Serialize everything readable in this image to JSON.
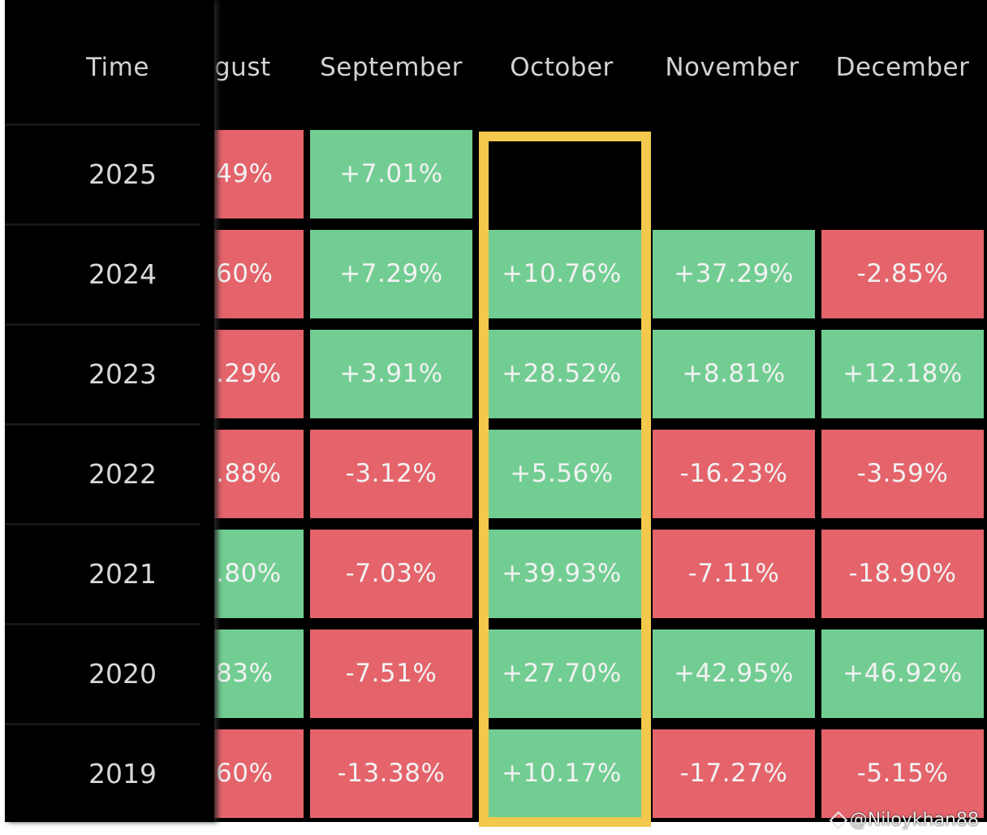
{
  "header": {
    "time": "Time",
    "august_partial": "gust",
    "september": "September",
    "october": "October",
    "november": "November",
    "december": "December"
  },
  "rows": [
    {
      "year": "2025",
      "august": "49%",
      "august_dir": "down",
      "september": "+7.01%",
      "september_dir": "up",
      "october": "",
      "october_dir": "none",
      "november": "",
      "november_dir": "none",
      "december": "",
      "december_dir": "none"
    },
    {
      "year": "2024",
      "august": "60%",
      "august_dir": "down",
      "september": "+7.29%",
      "september_dir": "up",
      "october": "+10.76%",
      "october_dir": "up",
      "november": "+37.29%",
      "november_dir": "up",
      "december": "-2.85%",
      "december_dir": "down"
    },
    {
      "year": "2023",
      "august": ".29%",
      "august_dir": "down",
      "september": "+3.91%",
      "september_dir": "up",
      "october": "+28.52%",
      "october_dir": "up",
      "november": "+8.81%",
      "november_dir": "up",
      "december": "+12.18%",
      "december_dir": "up"
    },
    {
      "year": "2022",
      "august": ".88%",
      "august_dir": "down",
      "september": "-3.12%",
      "september_dir": "down",
      "october": "+5.56%",
      "october_dir": "up",
      "november": "-16.23%",
      "november_dir": "down",
      "december": "-3.59%",
      "december_dir": "down"
    },
    {
      "year": "2021",
      "august": ".80%",
      "august_dir": "up",
      "september": "-7.03%",
      "september_dir": "down",
      "october": "+39.93%",
      "october_dir": "up",
      "november": "-7.11%",
      "november_dir": "down",
      "december": "-18.90%",
      "december_dir": "down"
    },
    {
      "year": "2020",
      "august": "83%",
      "august_dir": "up",
      "september": "-7.51%",
      "september_dir": "down",
      "october": "+27.70%",
      "october_dir": "up",
      "november": "+42.95%",
      "november_dir": "up",
      "december": "+46.92%",
      "december_dir": "up"
    },
    {
      "year": "2019",
      "august": "60%",
      "august_dir": "down",
      "september": "-13.38%",
      "september_dir": "down",
      "october": "+10.17%",
      "october_dir": "up",
      "november": "-17.27%",
      "november_dir": "down",
      "december": "-5.15%",
      "december_dir": "down"
    }
  ],
  "colors": {
    "positive": "#72cd92",
    "negative": "#e5636a",
    "highlight": "#f2c94c",
    "background": "#000000"
  },
  "highlight_column": "october",
  "watermark": {
    "text": "@Niloykhan88",
    "icon": "binance-diamond-icon"
  }
}
